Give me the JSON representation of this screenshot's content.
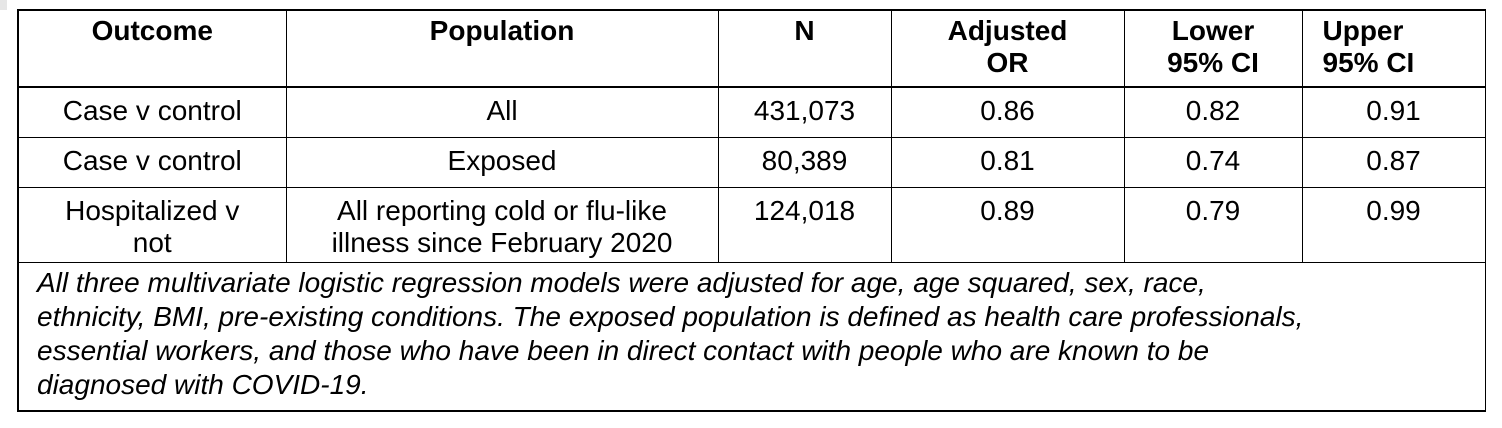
{
  "table": {
    "headers": [
      [
        "Outcome"
      ],
      [
        "Population"
      ],
      [
        "N"
      ],
      [
        "Adjusted",
        "OR"
      ],
      [
        "Lower",
        "95% CI"
      ],
      [
        "Upper",
        "95% CI"
      ]
    ],
    "rows": [
      {
        "outcome": [
          "Case v control"
        ],
        "population": [
          "All"
        ],
        "n": "431,073",
        "adjusted_or": "0.86",
        "lower_ci": "0.82",
        "upper_ci": "0.91"
      },
      {
        "outcome": [
          "Case v control"
        ],
        "population": [
          "Exposed"
        ],
        "n": "80,389",
        "adjusted_or": "0.81",
        "lower_ci": "0.74",
        "upper_ci": "0.87"
      },
      {
        "outcome": [
          "Hospitalized v",
          "not"
        ],
        "population": [
          "All reporting cold or flu-like",
          "illness since February 2020"
        ],
        "n": "124,018",
        "adjusted_or": "0.89",
        "lower_ci": "0.79",
        "upper_ci": "0.99"
      }
    ],
    "note_lines": [
      "All three multivariate logistic regression models were adjusted for age, age squared, sex, race,",
      "ethnicity, BMI, pre-existing conditions. The exposed population is defined as health care professionals,",
      "essential workers, and those who have been in direct contact with people who are known to be",
      "diagnosed with COVID-19."
    ]
  }
}
